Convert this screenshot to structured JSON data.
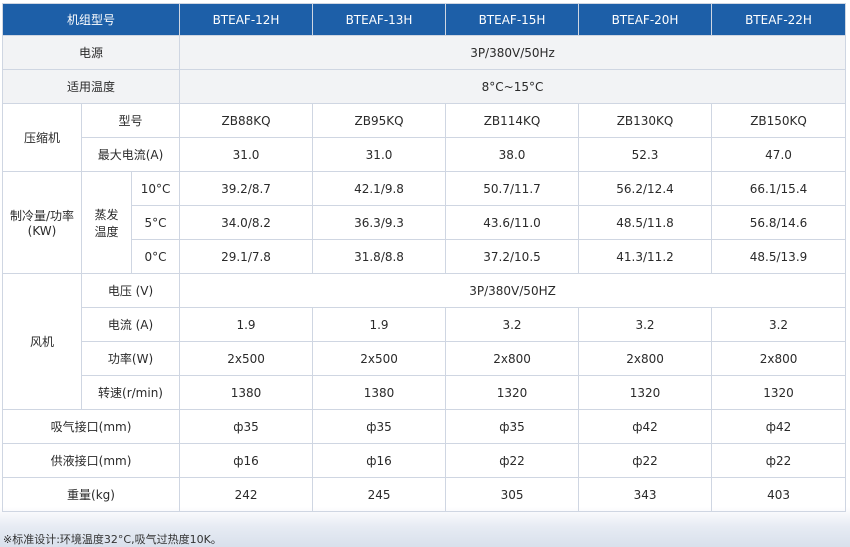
{
  "header": {
    "label": "机组型号",
    "models": [
      "BTEAF-12H",
      "BTEAF-13H",
      "BTEAF-15H",
      "BTEAF-20H",
      "BTEAF-22H"
    ]
  },
  "power": {
    "label": "电源",
    "value": "3P/380V/50Hz"
  },
  "temp_range": {
    "label": "适用温度",
    "value": "8°C~15°C"
  },
  "compressor": {
    "label": "压缩机",
    "model_label": "型号",
    "models": [
      "ZB88KQ",
      "ZB95KQ",
      "ZB114KQ",
      "ZB130KQ",
      "ZB150KQ"
    ],
    "current_label": "最大电流(A)",
    "currents": [
      "31.0",
      "31.0",
      "38.0",
      "52.3",
      "47.0"
    ]
  },
  "cooling": {
    "label": "制冷量/功率(KW)",
    "evap_label": "蒸发温度",
    "rows": [
      {
        "temp": "10°C",
        "values": [
          "39.2/8.7",
          "42.1/9.8",
          "50.7/11.7",
          "56.2/12.4",
          "66.1/15.4"
        ]
      },
      {
        "temp": "5°C",
        "values": [
          "34.0/8.2",
          "36.3/9.3",
          "43.6/11.0",
          "48.5/11.8",
          "56.8/14.6"
        ]
      },
      {
        "temp": "0°C",
        "values": [
          "29.1/7.8",
          "31.8/8.8",
          "37.2/10.5",
          "41.3/11.2",
          "48.5/13.9"
        ]
      }
    ]
  },
  "fan": {
    "label": "风机",
    "voltage_label": "电压 (V)",
    "voltage": "3P/380V/50HZ",
    "current_label": "电流 (A)",
    "currents": [
      "1.9",
      "1.9",
      "3.2",
      "3.2",
      "3.2"
    ],
    "power_label": "功率(W)",
    "powers": [
      "2x500",
      "2x500",
      "2x800",
      "2x800",
      "2x800"
    ],
    "speed_label": "转速(r/min)",
    "speeds": [
      "1380",
      "1380",
      "1320",
      "1320",
      "1320"
    ]
  },
  "suction": {
    "label": "吸气接口(mm)",
    "values": [
      "ф35",
      "ф35",
      "ф35",
      "ф42",
      "ф42"
    ]
  },
  "liquid": {
    "label": "供液接口(mm)",
    "values": [
      "ф16",
      "ф16",
      "ф22",
      "ф22",
      "ф22"
    ]
  },
  "weight": {
    "label": "重量(kg)",
    "values": [
      "242",
      "245",
      "305",
      "343",
      "403"
    ]
  },
  "footnote": "※标准设计:环境温度32°C,吸气过热度10K。"
}
